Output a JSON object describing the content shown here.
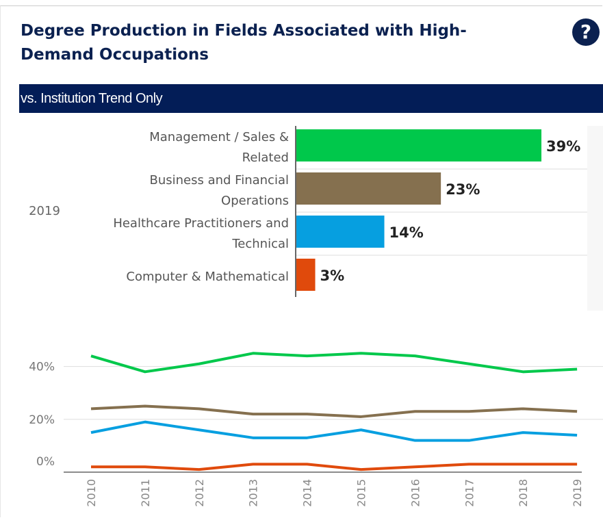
{
  "header": {
    "title": "Degree Production in Fields Associated with High-Demand Occupations",
    "help": "?",
    "banner": "vs. Institution Trend Only"
  },
  "chart_data": [
    {
      "type": "hbar",
      "group": "2019",
      "categories": [
        "Management / Sales & Related",
        "Business and Financial Operations",
        "Healthcare Practitioners and Technical",
        "Computer & Mathematical"
      ],
      "values": [
        39,
        23,
        14,
        3
      ],
      "value_labels": [
        "39%",
        "23%",
        "14%",
        "3%"
      ],
      "colors": [
        "#00c84b",
        "#85704f",
        "#069fe0",
        "#e04a0c"
      ]
    },
    {
      "type": "line",
      "categories": [
        "2010",
        "2011",
        "2012",
        "2013",
        "2014",
        "2015",
        "2016",
        "2017",
        "2018",
        "2019"
      ],
      "ylim": [
        0,
        50
      ],
      "yticks": [
        {
          "value": 0,
          "label": "0%"
        },
        {
          "value": 20,
          "label": "20%"
        },
        {
          "value": 40,
          "label": "40%"
        }
      ],
      "grid": true,
      "series": [
        {
          "color": "#00c84b",
          "values": [
            44,
            38,
            41,
            45,
            44,
            45,
            44,
            41,
            38,
            39
          ]
        },
        {
          "color": "#85704f",
          "values": [
            24,
            25,
            24,
            22,
            22,
            21,
            23,
            23,
            24,
            23
          ]
        },
        {
          "color": "#069fe0",
          "values": [
            15,
            19,
            16,
            13,
            13,
            16,
            12,
            12,
            15,
            14
          ]
        },
        {
          "color": "#e04a0c",
          "values": [
            2,
            2,
            1,
            3,
            3,
            1,
            2,
            3,
            3,
            3
          ]
        }
      ]
    }
  ]
}
